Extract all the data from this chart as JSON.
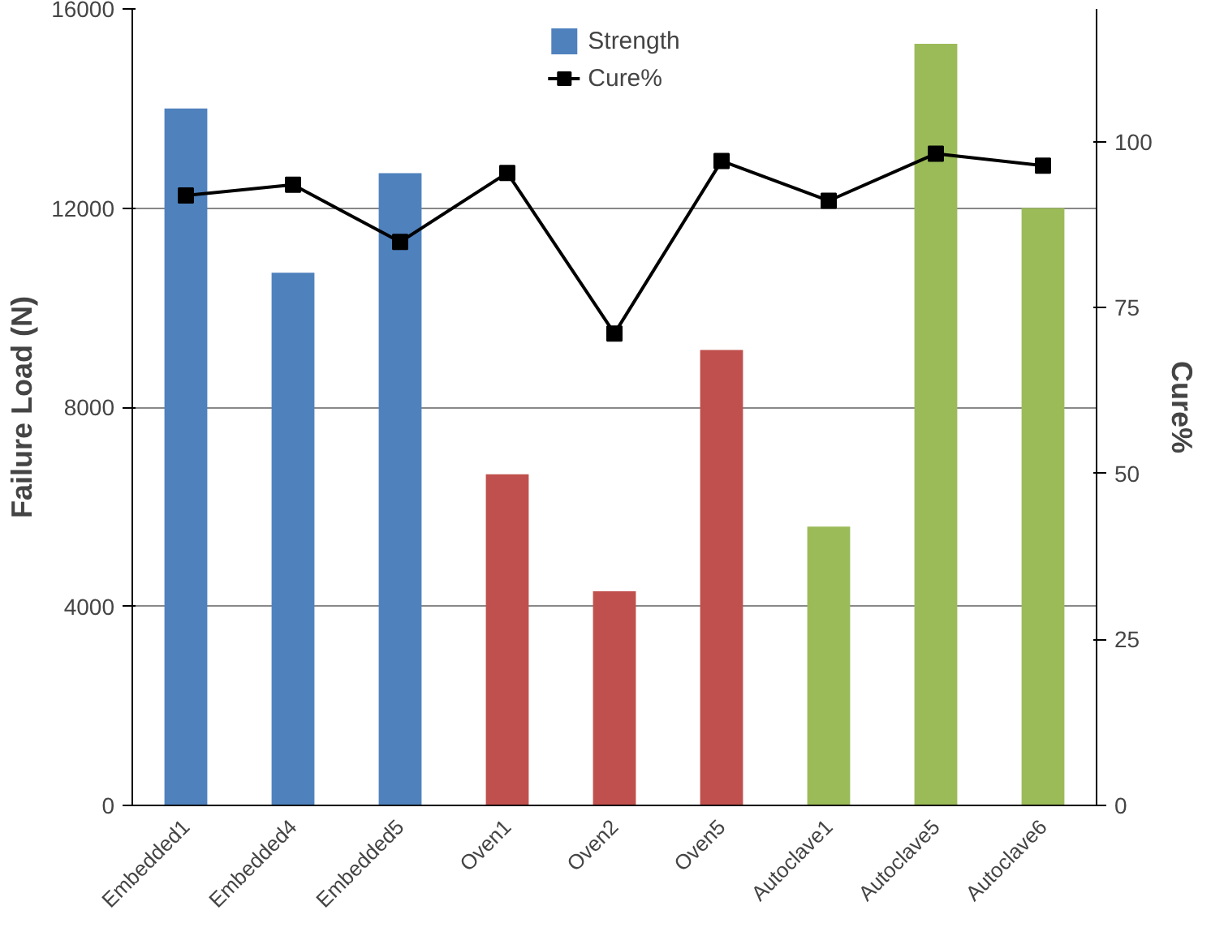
{
  "chart_data": {
    "type": "bar",
    "ylabel": "Failure Load (N)",
    "y2label": "Cure%",
    "categories": [
      "Embedded1",
      "Embedded4",
      "Embedded5",
      "Oven1",
      "Oven2",
      "Oven5",
      "Autoclave1",
      "Autoclave5",
      "Autoclave6"
    ],
    "series": [
      {
        "name": "Strength",
        "color": "#4f81bd",
        "colors": [
          "#4f81bd",
          "#4f81bd",
          "#4f81bd",
          "#c0504d",
          "#c0504d",
          "#c0504d",
          "#9bbb59",
          "#9bbb59",
          "#9bbb59"
        ],
        "values": [
          14000,
          10700,
          12700,
          6650,
          4300,
          9150,
          5600,
          15300,
          12000
        ]
      },
      {
        "name": "Cure%",
        "type": "line",
        "axis": "y2",
        "color": "#000000",
        "values": [
          91.9,
          93.5,
          84.9,
          95.3,
          71.1,
          97.1,
          91.1,
          98.2,
          96.4
        ]
      }
    ],
    "ylim": [
      0,
      16000
    ],
    "yticks": [
      0,
      4000,
      8000,
      12000,
      16000
    ],
    "y2lim": [
      0,
      120
    ],
    "y2ticks": [
      0,
      25,
      50,
      75,
      100
    ],
    "grid": "y",
    "legend": "top",
    "marker": "square",
    "line_style": "solid"
  }
}
